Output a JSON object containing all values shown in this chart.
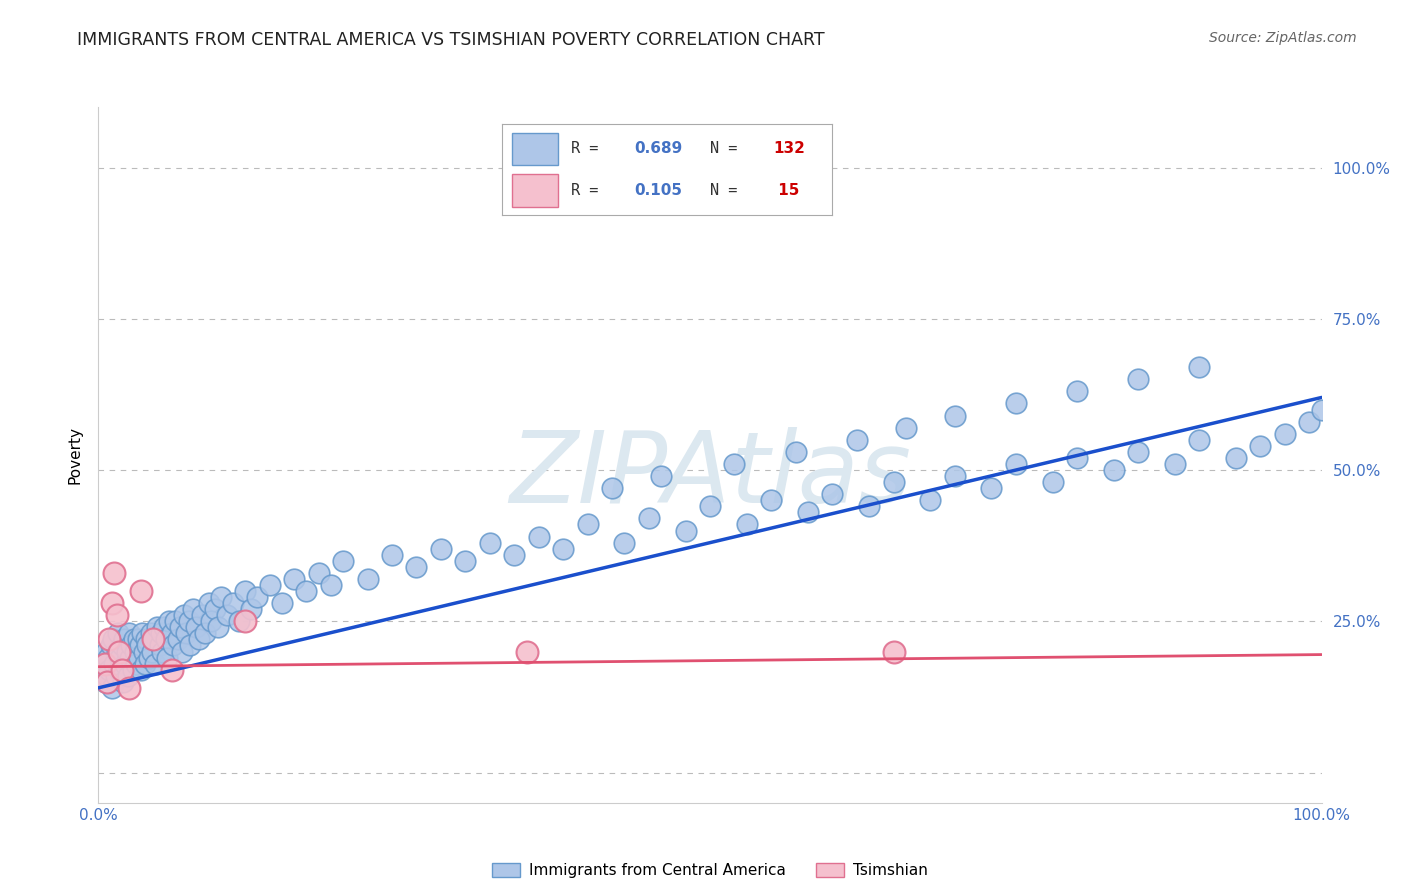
{
  "title": "IMMIGRANTS FROM CENTRAL AMERICA VS TSIMSHIAN POVERTY CORRELATION CHART",
  "source": "Source: ZipAtlas.com",
  "ylabel": "Poverty",
  "xlim": [
    0,
    1
  ],
  "ylim": [
    -0.05,
    1.1
  ],
  "blue_R": 0.689,
  "blue_N": 132,
  "pink_R": 0.105,
  "pink_N": 15,
  "blue_color": "#aec6e8",
  "blue_edge": "#6699cc",
  "pink_color": "#f5c0ce",
  "pink_edge": "#e07090",
  "blue_line_color": "#1a4fcc",
  "pink_line_color": "#e05070",
  "watermark_color": "#dce8f0",
  "background_color": "#ffffff",
  "grid_color": "#bbbbbb",
  "title_color": "#222222",
  "source_color": "#666666",
  "axis_label_color": "#000000",
  "tick_color": "#4472c4",
  "legend_R_color": "#4472c4",
  "legend_N_color": "#cc0000",
  "blue_trend_x0": 0.0,
  "blue_trend_y0": 0.14,
  "blue_trend_x1": 1.0,
  "blue_trend_y1": 0.62,
  "pink_trend_x0": 0.0,
  "pink_trend_y0": 0.175,
  "pink_trend_x1": 1.0,
  "pink_trend_y1": 0.195,
  "blue_x": [
    0.003,
    0.005,
    0.006,
    0.007,
    0.008,
    0.009,
    0.01,
    0.011,
    0.012,
    0.013,
    0.014,
    0.015,
    0.016,
    0.017,
    0.018,
    0.019,
    0.02,
    0.021,
    0.022,
    0.023,
    0.024,
    0.025,
    0.026,
    0.027,
    0.028,
    0.029,
    0.03,
    0.031,
    0.032,
    0.033,
    0.034,
    0.035,
    0.036,
    0.037,
    0.038,
    0.039,
    0.04,
    0.041,
    0.043,
    0.044,
    0.045,
    0.046,
    0.048,
    0.05,
    0.051,
    0.052,
    0.054,
    0.055,
    0.056,
    0.058,
    0.06,
    0.061,
    0.063,
    0.065,
    0.067,
    0.068,
    0.07,
    0.072,
    0.074,
    0.075,
    0.077,
    0.08,
    0.082,
    0.085,
    0.087,
    0.09,
    0.092,
    0.095,
    0.098,
    0.1,
    0.105,
    0.11,
    0.115,
    0.12,
    0.125,
    0.13,
    0.14,
    0.15,
    0.16,
    0.17,
    0.18,
    0.19,
    0.2,
    0.22,
    0.24,
    0.26,
    0.28,
    0.3,
    0.32,
    0.34,
    0.36,
    0.38,
    0.4,
    0.43,
    0.45,
    0.48,
    0.5,
    0.53,
    0.55,
    0.58,
    0.6,
    0.63,
    0.65,
    0.68,
    0.7,
    0.73,
    0.75,
    0.78,
    0.8,
    0.83,
    0.85,
    0.88,
    0.9,
    0.93,
    0.95,
    0.97,
    0.99,
    1.0,
    0.42,
    0.46,
    0.52,
    0.57,
    0.62,
    0.66,
    0.7,
    0.75,
    0.8,
    0.85,
    0.9
  ],
  "blue_y": [
    0.18,
    0.15,
    0.2,
    0.16,
    0.19,
    0.17,
    0.21,
    0.14,
    0.22,
    0.18,
    0.16,
    0.2,
    0.23,
    0.17,
    0.19,
    0.21,
    0.15,
    0.22,
    0.18,
    0.2,
    0.16,
    0.23,
    0.19,
    0.21,
    0.17,
    0.22,
    0.2,
    0.18,
    0.22,
    0.19,
    0.21,
    0.17,
    0.23,
    0.2,
    0.18,
    0.22,
    0.21,
    0.19,
    0.23,
    0.2,
    0.22,
    0.18,
    0.24,
    0.21,
    0.23,
    0.2,
    0.24,
    0.22,
    0.19,
    0.25,
    0.23,
    0.21,
    0.25,
    0.22,
    0.24,
    0.2,
    0.26,
    0.23,
    0.25,
    0.21,
    0.27,
    0.24,
    0.22,
    0.26,
    0.23,
    0.28,
    0.25,
    0.27,
    0.24,
    0.29,
    0.26,
    0.28,
    0.25,
    0.3,
    0.27,
    0.29,
    0.31,
    0.28,
    0.32,
    0.3,
    0.33,
    0.31,
    0.35,
    0.32,
    0.36,
    0.34,
    0.37,
    0.35,
    0.38,
    0.36,
    0.39,
    0.37,
    0.41,
    0.38,
    0.42,
    0.4,
    0.44,
    0.41,
    0.45,
    0.43,
    0.46,
    0.44,
    0.48,
    0.45,
    0.49,
    0.47,
    0.51,
    0.48,
    0.52,
    0.5,
    0.53,
    0.51,
    0.55,
    0.52,
    0.54,
    0.56,
    0.58,
    0.6,
    0.47,
    0.49,
    0.51,
    0.53,
    0.55,
    0.57,
    0.59,
    0.61,
    0.63,
    0.65,
    0.67
  ],
  "pink_x": [
    0.005,
    0.007,
    0.009,
    0.011,
    0.013,
    0.015,
    0.017,
    0.019,
    0.025,
    0.035,
    0.045,
    0.06,
    0.12,
    0.35,
    0.65
  ],
  "pink_y": [
    0.18,
    0.15,
    0.22,
    0.28,
    0.33,
    0.26,
    0.2,
    0.17,
    0.14,
    0.3,
    0.22,
    0.17,
    0.25,
    0.2,
    0.2
  ]
}
